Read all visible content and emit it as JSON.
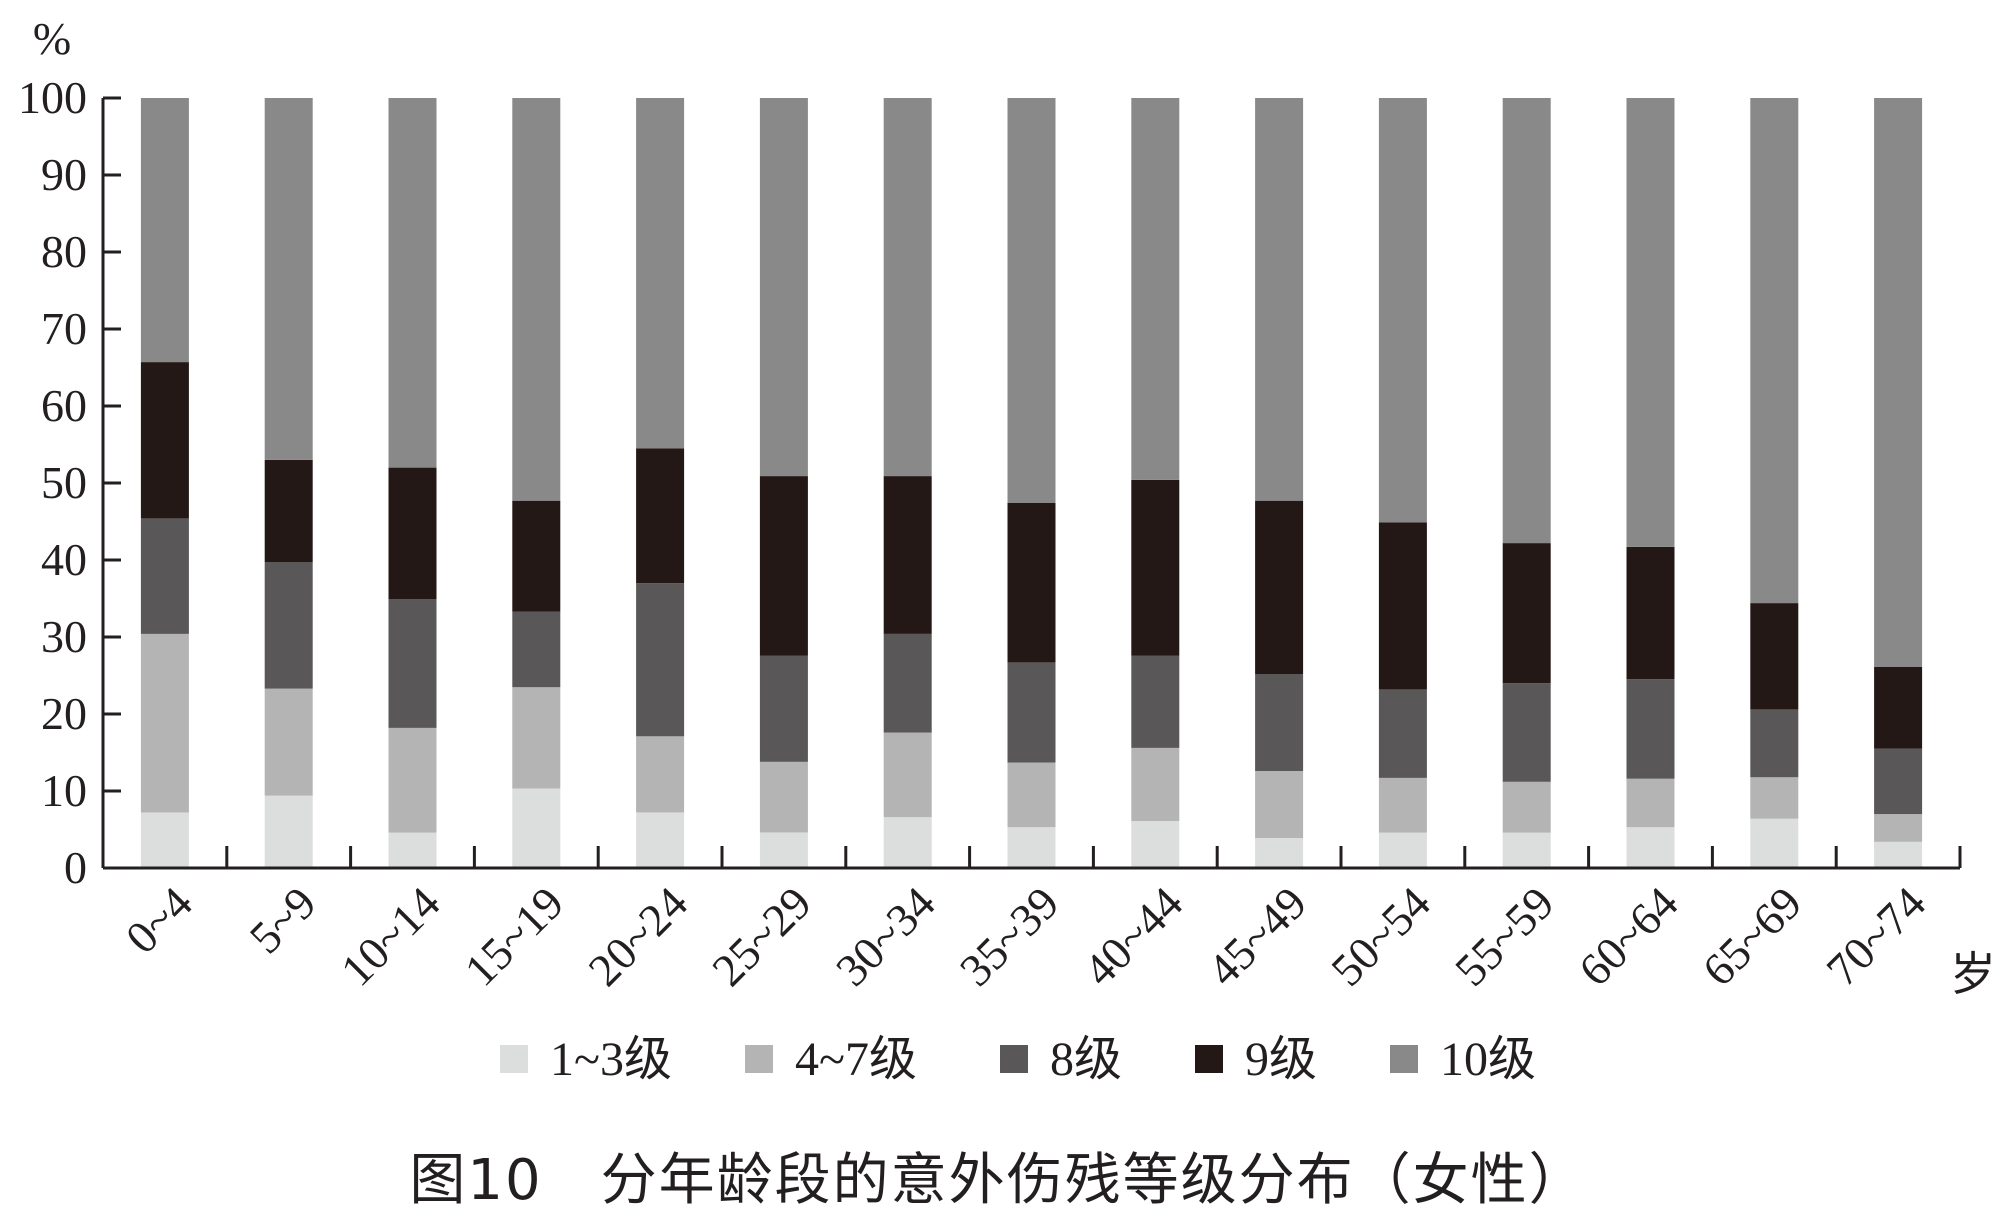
{
  "caption": "图10　分年龄段的意外伤残等级分布（女性）",
  "chart_data": {
    "type": "bar",
    "stacked": true,
    "ylabel": "%",
    "xunit": "岁",
    "ylim": [
      0,
      100
    ],
    "yticks": [
      0,
      10,
      20,
      30,
      40,
      50,
      60,
      70,
      80,
      90,
      100
    ],
    "grid": false,
    "legend_position": "bottom",
    "categories": [
      "0~4",
      "5~9",
      "10~14",
      "15~19",
      "20~24",
      "25~29",
      "30~34",
      "35~39",
      "40~44",
      "45~49",
      "50~54",
      "55~59",
      "60~64",
      "65~69",
      "70~74"
    ],
    "series": [
      {
        "name": "1~3级",
        "color": "#dcdddd",
        "values": [
          7.2,
          9.4,
          4.6,
          10.3,
          7.2,
          4.6,
          6.6,
          5.3,
          6.1,
          3.9,
          4.6,
          4.6,
          5.3,
          6.4,
          3.4
        ]
      },
      {
        "name": "4~7级",
        "color": "#b4b4b5",
        "values": [
          23.2,
          13.9,
          13.6,
          13.2,
          9.9,
          9.2,
          11.0,
          8.4,
          9.5,
          8.7,
          7.1,
          6.6,
          6.3,
          5.4,
          3.6
        ]
      },
      {
        "name": "8级",
        "color": "#595757",
        "values": [
          15.0,
          16.4,
          16.7,
          9.8,
          19.9,
          13.8,
          12.8,
          13.0,
          12.0,
          12.6,
          11.5,
          12.8,
          12.9,
          8.8,
          8.5
        ]
      },
      {
        "name": "9级",
        "color": "#231815",
        "values": [
          20.3,
          13.3,
          17.1,
          14.4,
          17.5,
          23.3,
          20.5,
          20.7,
          22.8,
          22.5,
          21.7,
          18.2,
          17.2,
          13.8,
          10.6
        ]
      },
      {
        "name": "10级",
        "color": "#898989",
        "values": [
          34.3,
          47.0,
          48.0,
          52.3,
          45.5,
          49.1,
          49.1,
          52.6,
          49.6,
          52.3,
          55.1,
          57.8,
          58.3,
          65.6,
          73.9
        ]
      }
    ]
  }
}
